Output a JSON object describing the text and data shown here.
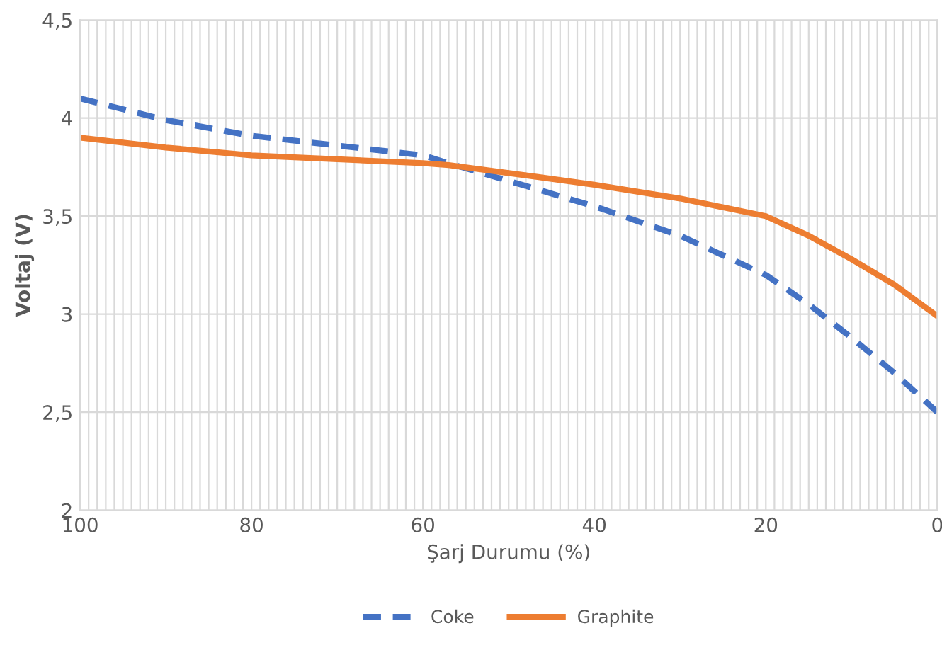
{
  "chart_data": {
    "type": "line",
    "xlabel": "Şarj Durumu (%)",
    "ylabel": "Voltaj (V)",
    "xlim": [
      100,
      0
    ],
    "ylim": [
      2,
      4.5
    ],
    "xticks": [
      100,
      {
        "value": 99,
        "label": null
      },
      {
        "value": 98,
        "label": null
      },
      {
        "value": 97,
        "label": null
      },
      {
        "value": 96,
        "label": null
      },
      {
        "value": 95,
        "label": null
      },
      {
        "value": 94,
        "label": null
      },
      {
        "value": 93,
        "label": null
      },
      {
        "value": 92,
        "label": null
      },
      {
        "value": 91,
        "label": null
      },
      {
        "value": 90,
        "label": null
      },
      {
        "value": 89,
        "label": null
      },
      {
        "value": 88,
        "label": null
      },
      {
        "value": 87,
        "label": null
      },
      {
        "value": 86,
        "label": null
      },
      {
        "value": 85,
        "label": null
      },
      {
        "value": 84,
        "label": null
      },
      {
        "value": 83,
        "label": null
      },
      {
        "value": 82,
        "label": null
      },
      {
        "value": 81,
        "label": null
      },
      80,
      {
        "value": 79,
        "label": null
      },
      {
        "value": 78,
        "label": null
      },
      {
        "value": 77,
        "label": null
      },
      {
        "value": 76,
        "label": null
      },
      {
        "value": 75,
        "label": null
      },
      {
        "value": 74,
        "label": null
      },
      {
        "value": 73,
        "label": null
      },
      {
        "value": 72,
        "label": null
      },
      {
        "value": 71,
        "label": null
      },
      {
        "value": 70,
        "label": null
      },
      {
        "value": 69,
        "label": null
      },
      {
        "value": 68,
        "label": null
      },
      {
        "value": 67,
        "label": null
      },
      {
        "value": 66,
        "label": null
      },
      {
        "value": 65,
        "label": null
      },
      {
        "value": 64,
        "label": null
      },
      {
        "value": 63,
        "label": null
      },
      {
        "value": 62,
        "label": null
      },
      {
        "value": 61,
        "label": null
      },
      60,
      {
        "value": 59,
        "label": null
      },
      {
        "value": 58,
        "label": null
      },
      {
        "value": 57,
        "label": null
      },
      {
        "value": 56,
        "label": null
      },
      {
        "value": 55,
        "label": null
      },
      {
        "value": 54,
        "label": null
      },
      {
        "value": 53,
        "label": null
      },
      {
        "value": 52,
        "label": null
      },
      {
        "value": 51,
        "label": null
      },
      {
        "value": 50,
        "label": null
      },
      {
        "value": 49,
        "label": null
      },
      {
        "value": 48,
        "label": null
      },
      {
        "value": 47,
        "label": null
      },
      {
        "value": 46,
        "label": null
      },
      {
        "value": 45,
        "label": null
      },
      {
        "value": 44,
        "label": null
      },
      {
        "value": 43,
        "label": null
      },
      {
        "value": 42,
        "label": null
      },
      {
        "value": 41,
        "label": null
      },
      40,
      {
        "value": 39,
        "label": null
      },
      {
        "value": 38,
        "label": null
      },
      {
        "value": 37,
        "label": null
      },
      {
        "value": 36,
        "label": null
      },
      {
        "value": 35,
        "label": null
      },
      {
        "value": 34,
        "label": null
      },
      {
        "value": 33,
        "label": null
      },
      {
        "value": 32,
        "label": null
      },
      {
        "value": 31,
        "label": null
      },
      {
        "value": 30,
        "label": null
      },
      {
        "value": 29,
        "label": null
      },
      {
        "value": 28,
        "label": null
      },
      {
        "value": 27,
        "label": null
      },
      {
        "value": 26,
        "label": null
      },
      {
        "value": 25,
        "label": null
      },
      {
        "value": 24,
        "label": null
      },
      {
        "value": 23,
        "label": null
      },
      {
        "value": 22,
        "label": null
      },
      {
        "value": 21,
        "label": null
      },
      20,
      {
        "value": 19,
        "label": null
      },
      {
        "value": 18,
        "label": null
      },
      {
        "value": 17,
        "label": null
      },
      {
        "value": 16,
        "label": null
      },
      {
        "value": 15,
        "label": null
      },
      {
        "value": 14,
        "label": null
      },
      {
        "value": 13,
        "label": null
      },
      {
        "value": 12,
        "label": null
      },
      {
        "value": 11,
        "label": null
      },
      {
        "value": 10,
        "label": null
      },
      {
        "value": 9,
        "label": null
      },
      {
        "value": 8,
        "label": null
      },
      {
        "value": 7,
        "label": null
      },
      {
        "value": 6,
        "label": null
      },
      {
        "value": 5,
        "label": null
      },
      {
        "value": 4,
        "label": null
      },
      {
        "value": 3,
        "label": null
      },
      {
        "value": 2,
        "label": null
      },
      {
        "value": 1,
        "label": null
      },
      0
    ],
    "yticks": [
      2,
      {
        "value": 2.5,
        "label": "2,5"
      },
      3,
      {
        "value": 3.5,
        "label": "3,5"
      },
      4,
      {
        "value": 4.5,
        "label": "4,5"
      }
    ],
    "grid": true,
    "legend": "bottom",
    "series": [
      {
        "name": "Coke",
        "color": "#4472c4",
        "line_style": "dashed",
        "x": [
          100,
          90,
          80,
          70,
          60,
          57,
          50,
          40,
          30,
          20,
          15,
          10,
          5,
          0
        ],
        "values": [
          4.1,
          3.99,
          3.91,
          3.86,
          3.81,
          3.77,
          3.68,
          3.55,
          3.4,
          3.2,
          3.05,
          2.88,
          2.7,
          2.5
        ]
      },
      {
        "name": "Graphite",
        "color": "#ed7d31",
        "line_style": "solid",
        "x": [
          100,
          90,
          80,
          70,
          60,
          57,
          50,
          40,
          30,
          20,
          15,
          10,
          5,
          0
        ],
        "values": [
          3.9,
          3.85,
          3.81,
          3.79,
          3.77,
          3.76,
          3.72,
          3.66,
          3.59,
          3.5,
          3.4,
          3.28,
          3.15,
          2.99
        ]
      }
    ]
  }
}
